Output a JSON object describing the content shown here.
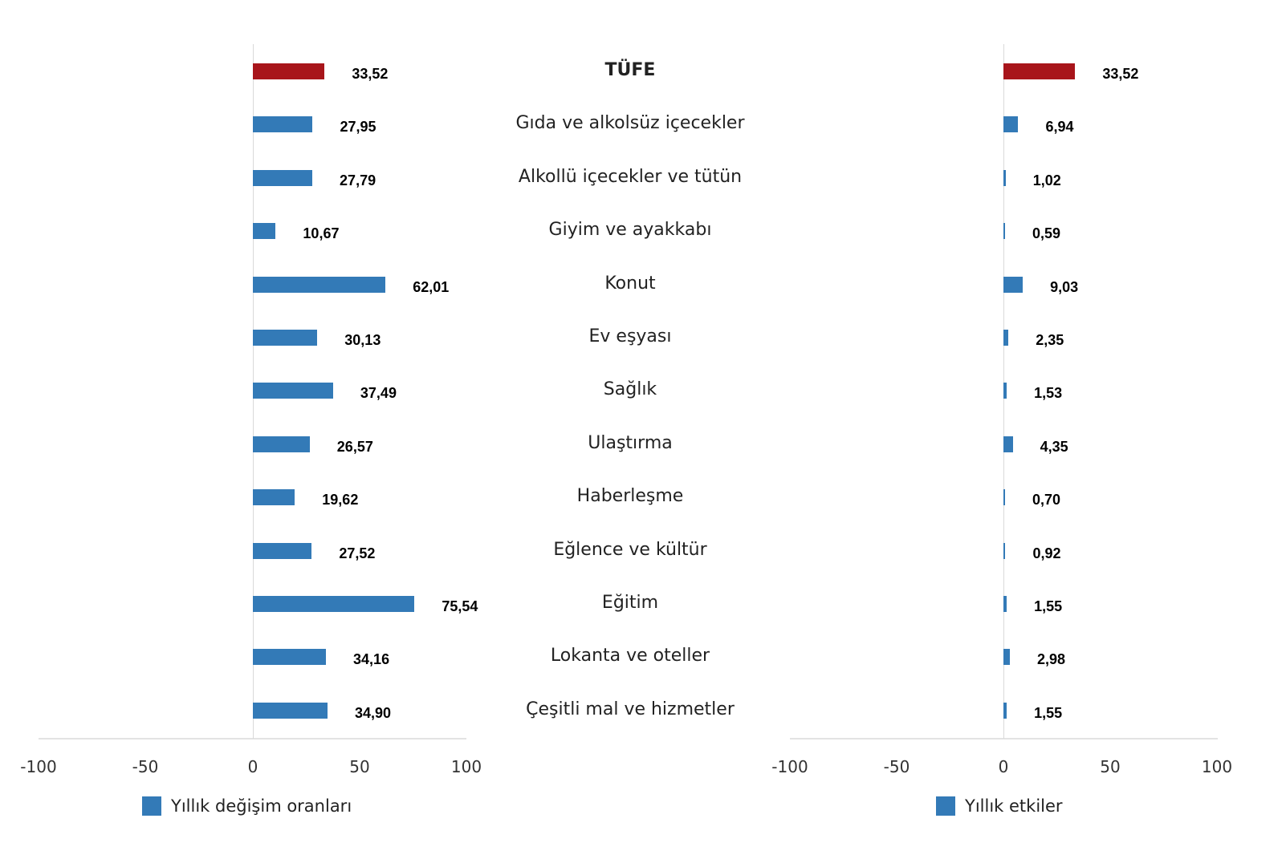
{
  "chart_data": [
    {
      "type": "bar",
      "orientation": "horizontal",
      "title": "",
      "legend": [
        "Yıllık değişim oranları"
      ],
      "legend_position": "bottom",
      "categories": [
        "TÜFE",
        "Gıda ve alkolsüz içecekler",
        "Alkollü içecekler ve tütün",
        "Giyim ve ayakkabı",
        "Konut",
        "Ev eşyası",
        "Sağlık",
        "Ulaştırma",
        "Haberleşme",
        "Eğlence ve kültür",
        "Eğitim",
        "Lokanta ve oteller",
        "Çeşitli mal ve hizmetler"
      ],
      "series": [
        {
          "name": "Yıllık değişim oranları",
          "values": [
            33.52,
            27.95,
            27.79,
            10.67,
            62.01,
            30.13,
            37.49,
            26.57,
            19.62,
            27.52,
            75.54,
            34.16,
            34.9
          ]
        }
      ],
      "value_labels": [
        "33,52",
        "27,95",
        "27,79",
        "10,67",
        "62,01",
        "30,13",
        "37,49",
        "26,57",
        "19,62",
        "27,52",
        "75,54",
        "34,16",
        "34,90"
      ],
      "xlim": [
        -100,
        100
      ],
      "xticks": [
        "-100",
        "-50",
        "0",
        "50",
        "100"
      ],
      "grid": false,
      "highlight": {
        "category": "TÜFE",
        "color": "#a8151b"
      },
      "bar_color": "#337ab7"
    },
    {
      "type": "bar",
      "orientation": "horizontal",
      "title": "",
      "legend": [
        "Yıllık etkiler"
      ],
      "legend_position": "bottom",
      "categories": [
        "TÜFE",
        "Gıda ve alkolsüz içecekler",
        "Alkollü içecekler ve tütün",
        "Giyim ve ayakkabı",
        "Konut",
        "Ev eşyası",
        "Sağlık",
        "Ulaştırma",
        "Haberleşme",
        "Eğlence ve kültür",
        "Eğitim",
        "Lokanta ve oteller",
        "Çeşitli mal ve hizmetler"
      ],
      "series": [
        {
          "name": "Yıllık etkiler",
          "values": [
            33.52,
            6.94,
            1.02,
            0.59,
            9.03,
            2.35,
            1.53,
            4.35,
            0.7,
            0.92,
            1.55,
            2.98,
            1.55
          ]
        }
      ],
      "value_labels": [
        "33,52",
        "6,94",
        "1,02",
        "0,59",
        "9,03",
        "2,35",
        "1,53",
        "4,35",
        "0,70",
        "0,92",
        "1,55",
        "2,98",
        "1,55"
      ],
      "xlim": [
        -100,
        100
      ],
      "xticks": [
        "-100",
        "-50",
        "0",
        "50",
        "100"
      ],
      "grid": false,
      "highlight": {
        "category": "TÜFE",
        "color": "#a8151b"
      },
      "bar_color": "#337ab7"
    }
  ],
  "left": {
    "ticks": [
      "-100",
      "-50",
      "0",
      "50",
      "100"
    ],
    "legend": "Yıllık değişim oranları"
  },
  "right": {
    "ticks": [
      "-100",
      "-50",
      "0",
      "50",
      "100"
    ],
    "legend": "Yıllık etkiler"
  },
  "categories": [
    "TÜFE",
    "Gıda ve alkolsüz içecekler",
    "Alkollü içecekler ve tütün",
    "Giyim ve ayakkabı",
    "Konut",
    "Ev eşyası",
    "Sağlık",
    "Ulaştırma",
    "Haberleşme",
    "Eğlence ve kültür",
    "Eğitim",
    "Lokanta ve oteller",
    "Çeşitli mal ve hizmetler"
  ],
  "colors": {
    "highlight": "#a8151b",
    "bar": "#337ab7"
  }
}
